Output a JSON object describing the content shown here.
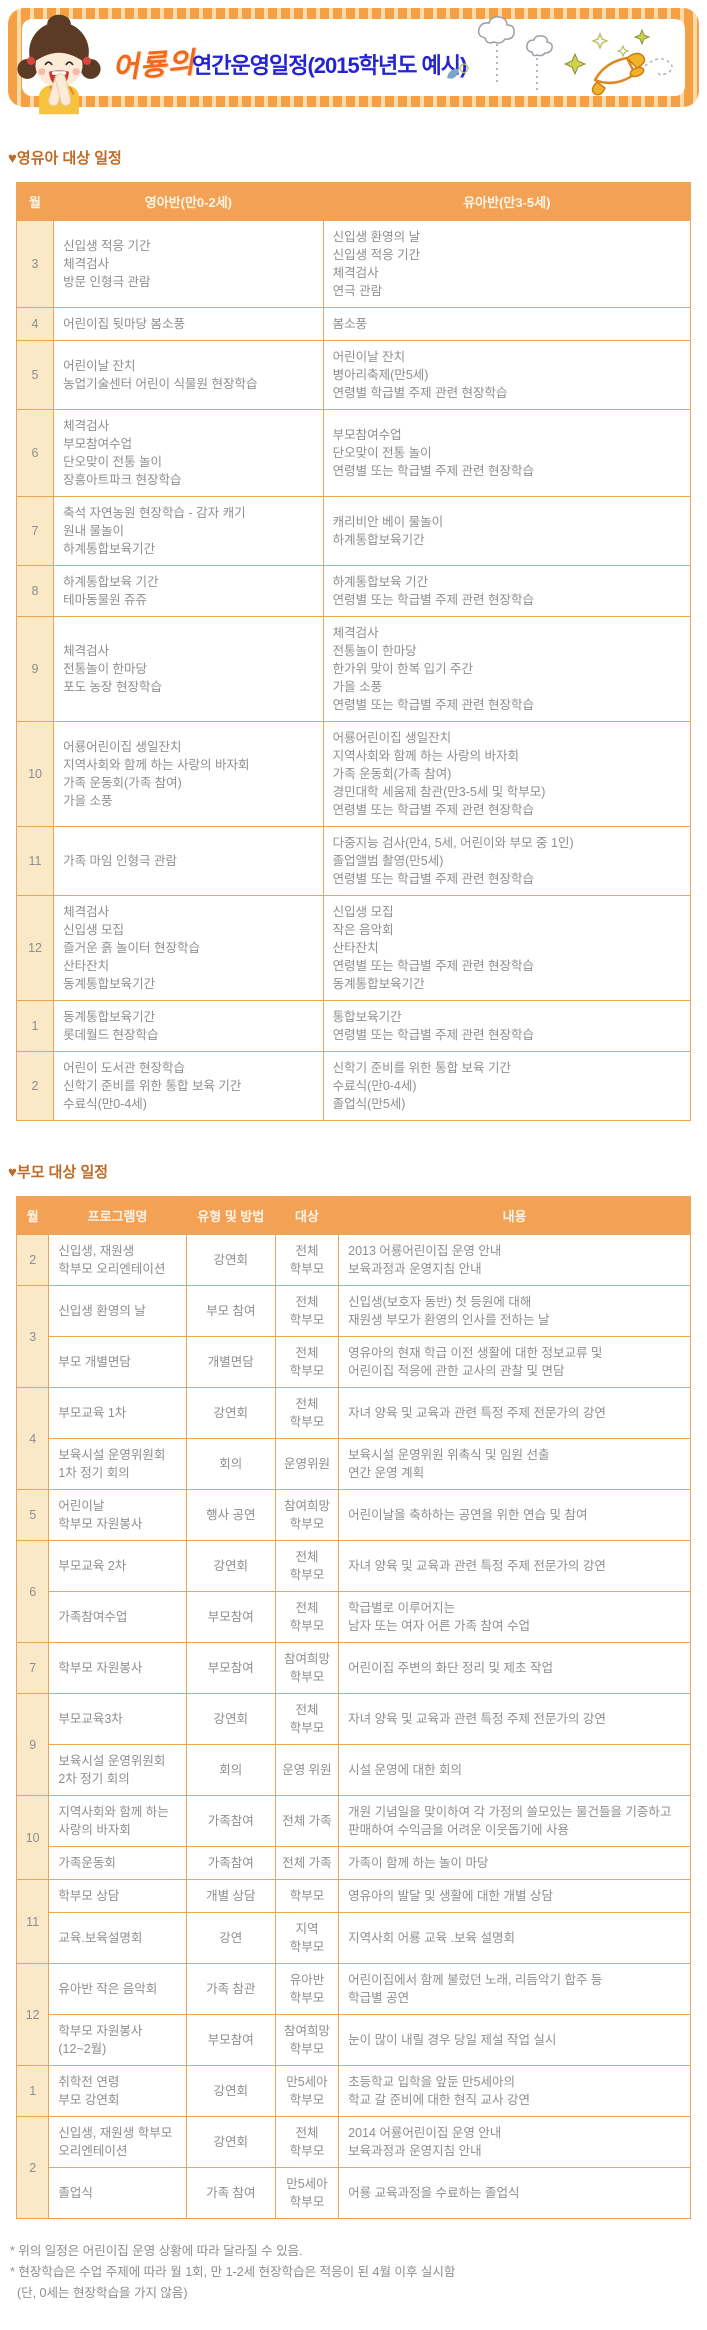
{
  "colors": {
    "accent_orange": "#F2A155",
    "table_border": "#E9A658",
    "month_column_bg": "#FAE8C7",
    "title_blue": "#2424D0",
    "logo_orange": "#F2691D",
    "section_title_orange": "#C06A25",
    "body_text_gray": "#8F8F8F"
  },
  "banner": {
    "logo_text": "어룡의",
    "title": "연간운영일정(2015학년도 예시)",
    "decor_icons": [
      "girl-character-icon",
      "cloud-doodle-icon",
      "star-icon",
      "paper-airplane-icon"
    ]
  },
  "section1": {
    "title": "♥영유아 대상 일정",
    "table": {
      "headers": [
        "월",
        "영아반(만0-2세)",
        "유아반(만3-5세)"
      ],
      "rows": [
        {
          "month": "3",
          "young": [
            "신입생 적응 기간",
            "체격검사",
            "방문 인형극 관람"
          ],
          "old": [
            "신입생 환영의 날",
            "신입생 적응 기간",
            "체격검사",
            "연극 관람"
          ]
        },
        {
          "month": "4",
          "young": [
            "어린이집 뒷마당 봄소풍"
          ],
          "old": [
            "봄소풍"
          ]
        },
        {
          "month": "5",
          "young": [
            "어린이날 잔치",
            "농업기술센터 어린이 식물원 현장학습"
          ],
          "old": [
            "어린이날 잔치",
            "병아리축제(만5세)",
            "연령별 학급별 주제 관련 현장학습"
          ]
        },
        {
          "month": "6",
          "young": [
            "체격검사",
            "부모참여수업",
            "단오맞이 전통 놀이",
            "장흥아트파크 현장학습"
          ],
          "old": [
            "부모참여수업",
            "단오맞이 전통 놀이",
            "연령별 또는 학급별 주제 관련 현장학습"
          ]
        },
        {
          "month": "7",
          "young": [
            "축석 자연농원 현장학습 - 감자 캐기",
            "원내 물놀이",
            "하계통합보육기간"
          ],
          "old": [
            "캐리비안 베이 물놀이",
            "하계통합보육기간"
          ]
        },
        {
          "month": "8",
          "young": [
            "하계통합보육 기간",
            "테마동물원 쥬쥬"
          ],
          "old": [
            "하계통합보육 기간",
            "연령별 또는 학급별 주제 관련 현장학습"
          ]
        },
        {
          "month": "9",
          "young": [
            "체격검사",
            "전통놀이 한마당",
            "포도 농장 현장학습"
          ],
          "old": [
            "체격검사",
            "전통놀이 한마당",
            "한가위 맞이 한복 입기 주간",
            "가을 소풍",
            "연령별 또는 학급별 주제 관련 현장학습"
          ]
        },
        {
          "month": "10",
          "young": [
            "어룡어린이집 생일잔치",
            "지역사회와 함께 하는 사랑의 바자회",
            "가족 운동회(가족 참여)",
            "가을 소풍"
          ],
          "old": [
            "어룡어린이집 생일잔치",
            "지역사회와 함께 하는 사랑의 바자회",
            "가족 운동회(가족 참여)",
            "경민대학 세움제 참관(만3-5세 및 학부모)",
            "연령별 또는 학급별 주제 관련 현장학습"
          ]
        },
        {
          "month": "11",
          "young": [
            "가족 마임 인형극 관람"
          ],
          "old": [
            "다중지능 검사(만4, 5세, 어린이와 부모 중 1인)",
            "졸업앨범 촬영(만5세)",
            "연령별 또는 학급별 주제 관련 현장학습"
          ]
        },
        {
          "month": "12",
          "young": [
            "체격검사",
            "신입생 모집",
            "즐거운 흙 놀이터 현장학습",
            "산타잔치",
            "동계통합보육기간"
          ],
          "old": [
            "신입생 모집",
            "작은 음악회",
            "산타잔치",
            "연령별 또는 학급별 주제 관련 현장학습",
            "동계통합보육기간"
          ]
        },
        {
          "month": "1",
          "young": [
            "동계통합보육기간",
            "롯데월드 현장학습"
          ],
          "old": [
            "통합보육기간",
            "연령별 또는 학급별 주제 관련 현장학습"
          ]
        },
        {
          "month": "2",
          "young": [
            "어린이 도서관 현장학습",
            "신학기 준비를 위한 통합 보육 기간",
            "수료식(만0-4세)"
          ],
          "old": [
            "신학기 준비를 위한 통합 보육 기간",
            "수료식(만0-4세)",
            "졸업식(만5세)"
          ]
        }
      ]
    }
  },
  "section2": {
    "title": "♥부모 대상 일정",
    "table": {
      "headers": [
        "월",
        "프로그램명",
        "유형 및 방법",
        "대상",
        "내용"
      ],
      "groups": [
        {
          "month": "2",
          "rows": [
            {
              "program": [
                "신입생, 재원생",
                "학부모 오리엔테이션"
              ],
              "type": [
                "강연회"
              ],
              "target": [
                "전체",
                "학부모"
              ],
              "content": [
                "2013 어룡어린이집 운영 안내",
                "보육과정과 운영지침 안내"
              ]
            }
          ]
        },
        {
          "month": "3",
          "rows": [
            {
              "program": [
                "신입생 환영의 날"
              ],
              "type": [
                "부모 참여"
              ],
              "target": [
                "전체",
                "학부모"
              ],
              "content": [
                "신입생(보호자 동반) 첫 등원에 대해",
                "재원생 부모가 환영의 인사를 전하는 날"
              ]
            },
            {
              "program": [
                "부모 개별면담"
              ],
              "type": [
                "개별면담"
              ],
              "target": [
                "전체",
                "학부모"
              ],
              "content": [
                "영유아의 현재 학급 이전 생활에 대한 정보교류 및",
                "어린이집 적응에 관한 교사의 관찰 및 면담"
              ]
            }
          ]
        },
        {
          "month": "4",
          "rows": [
            {
              "program": [
                "부모교육 1차"
              ],
              "type": [
                "강연회"
              ],
              "target": [
                "전체",
                "학부모"
              ],
              "content": [
                "자녀 양육 및 교육과 관련 특정 주제 전문가의 강연"
              ]
            },
            {
              "program": [
                "보육시설 운영위원회",
                "1차 정기 회의"
              ],
              "type": [
                "회의"
              ],
              "target": [
                "운영위원"
              ],
              "content": [
                "보육시설 운영위원 위촉식 및 임원 선출",
                "연간 운영 계획"
              ]
            }
          ]
        },
        {
          "month": "5",
          "rows": [
            {
              "program": [
                "어린이날",
                "학부모 자원봉사"
              ],
              "type": [
                "행사 공연"
              ],
              "target": [
                "참여희망",
                "학부모"
              ],
              "content": [
                "어린이날을 축하하는 공연을 위한 연습 및 참여"
              ]
            }
          ]
        },
        {
          "month": "6",
          "rows": [
            {
              "program": [
                "부모교육 2차"
              ],
              "type": [
                "강연회"
              ],
              "target": [
                "전체",
                "학부모"
              ],
              "content": [
                "자녀 양육 및 교육과 관련 특정 주제 전문가의 강연"
              ]
            },
            {
              "program": [
                "가족참여수업"
              ],
              "type": [
                "부모참여"
              ],
              "target": [
                "전체",
                "학부모"
              ],
              "content": [
                "학급별로 이루어지는",
                "남자 또는 여자 어른 가족 참여 수업"
              ]
            }
          ]
        },
        {
          "month": "7",
          "rows": [
            {
              "program": [
                "학부모 자원봉사"
              ],
              "type": [
                "부모참여"
              ],
              "target": [
                "참여희망",
                "학부모"
              ],
              "content": [
                "어린이집 주변의 화단 정리 및 제초 작업"
              ]
            }
          ]
        },
        {
          "month": "9",
          "rows": [
            {
              "program": [
                "부모교육3차"
              ],
              "type": [
                "강연회"
              ],
              "target": [
                "전체",
                "학부모"
              ],
              "content": [
                "자녀 양육 및 교육과 관련 특정 주제 전문가의 강연"
              ]
            },
            {
              "program": [
                "보육시설 운영위원회",
                "2차 정기 회의"
              ],
              "type": [
                "회의"
              ],
              "target": [
                "운영 위원"
              ],
              "content": [
                "시설 운영에 대한 회의"
              ]
            }
          ]
        },
        {
          "month": "10",
          "rows": [
            {
              "program": [
                "지역사회와 함께 하는",
                "사랑의 바자회"
              ],
              "type": [
                "가족참여"
              ],
              "target": [
                "전체 가족"
              ],
              "content": [
                "개원 기념일을 맞이하여 각 가정의 쓸모있는 물건들을 기증하고 판매하여 수익금을 어려운 이웃돕기에 사용"
              ]
            },
            {
              "program": [
                "가족운동회"
              ],
              "type": [
                "가족참여"
              ],
              "target": [
                "전체 가족"
              ],
              "content": [
                "가족이 함께 하는 놀이 마당"
              ]
            }
          ]
        },
        {
          "month": "11",
          "rows": [
            {
              "program": [
                "학부모 상담"
              ],
              "type": [
                "개별 상담"
              ],
              "target": [
                "학부모"
              ],
              "content": [
                "영유아의 발달 및 생활에 대한 개별 상담"
              ]
            },
            {
              "program": [
                "교육.보육설명회"
              ],
              "type": [
                "강연"
              ],
              "target": [
                "지역",
                "학부모"
              ],
              "content": [
                "지역사회 어룡 교육 .보육 설명회"
              ]
            }
          ]
        },
        {
          "month": "12",
          "rows": [
            {
              "program": [
                "유아반 작은 음악회"
              ],
              "type": [
                "가족 참관"
              ],
              "target": [
                "유아반",
                "학부모"
              ],
              "content": [
                "어린이집에서 함께 불렀던 노래, 리듬악기 합주 등",
                "학급별 공연"
              ]
            },
            {
              "program": [
                "학부모 자원봉사",
                "(12~2월)"
              ],
              "type": [
                "부모참여"
              ],
              "target": [
                "참여희망",
                "학부모"
              ],
              "content": [
                "눈이 많이 내릴 경우 당일 제설 작업 실시"
              ]
            }
          ]
        },
        {
          "month": "1",
          "rows": [
            {
              "program": [
                "취학전 연령",
                "부모 강연회"
              ],
              "type": [
                "강연회"
              ],
              "target": [
                "만5세아",
                "학부모"
              ],
              "content": [
                "초등학교 입학을 앞둔 만5세아의",
                "학교 갈 준비에 대한 현직 교사 강연"
              ]
            }
          ]
        },
        {
          "month": "2",
          "rows": [
            {
              "program": [
                "신입생, 재원생 학부모",
                "오리엔테이션"
              ],
              "type": [
                "강연회"
              ],
              "target": [
                "전체",
                "학부모"
              ],
              "content": [
                "2014 어룡어린이집 운영 안내",
                "보육과정과 운영지침 안내"
              ]
            },
            {
              "program": [
                "졸업식"
              ],
              "type": [
                "가족 참여"
              ],
              "target": [
                "만5세아",
                "학부모"
              ],
              "content": [
                "어룡 교육과정을 수료하는 졸업식"
              ]
            }
          ]
        }
      ]
    }
  },
  "footnotes": [
    "* 위의 일정은 어린이집 운영 상황에 따라 달라질 수 있음.",
    "* 현장학습은 수업 주제에 따라 월 1회, 만 1-2세 현장학습은 적응이 된 4월 이후 실시함",
    "  (단, 0세는 현장학습을 가지 않음)"
  ]
}
